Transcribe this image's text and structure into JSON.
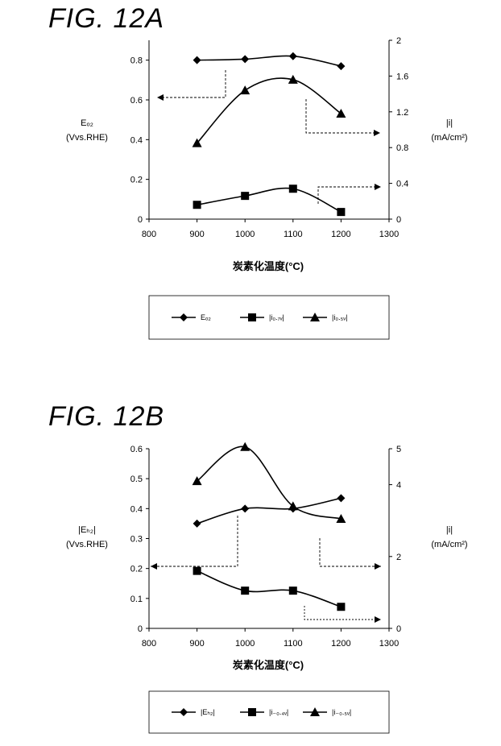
{
  "chart_data": [
    {
      "type": "line",
      "figure_label": "FIG. 12A",
      "xlabel": "炭素化温度(°C)",
      "xlim": [
        800,
        1300
      ],
      "x_ticks": [
        800,
        900,
        1000,
        1100,
        1200,
        1300
      ],
      "ylabel_left": [
        "Eₒ₂",
        "(Vvs.RHE)"
      ],
      "ylim_left": [
        0,
        0.9
      ],
      "y_ticks_left": [
        "0",
        "0.2",
        "0.4",
        "0.6",
        "0.8"
      ],
      "ylabel_right": [
        "|i|",
        "(mA/cm²)"
      ],
      "ylim_right": [
        0,
        2
      ],
      "y_ticks_right": [
        "0",
        "0.4",
        "0.8",
        "1.2",
        "1.6",
        "2"
      ],
      "series": [
        {
          "name": "Eₒ₂",
          "axis": "left",
          "marker": "diamond",
          "x": [
            900,
            1000,
            1100,
            1200
          ],
          "values": [
            0.8,
            0.805,
            0.82,
            0.77
          ]
        },
        {
          "name": "|i₀.₇ᵥ|",
          "axis": "right",
          "marker": "square",
          "x": [
            900,
            1000,
            1100,
            1200
          ],
          "values": [
            0.16,
            0.26,
            0.34,
            0.08
          ]
        },
        {
          "name": "|i₀.₅ᵥ|",
          "axis": "right",
          "marker": "triangle",
          "x": [
            900,
            1000,
            1100,
            1200
          ],
          "values": [
            0.85,
            1.44,
            1.56,
            1.18
          ]
        }
      ],
      "legend_position": "bottom",
      "grid": false
    },
    {
      "type": "line",
      "figure_label": "FIG. 12B",
      "xlabel": "炭素化温度(°C)",
      "xlim": [
        800,
        1300
      ],
      "x_ticks": [
        800,
        900,
        1000,
        1100,
        1200,
        1300
      ],
      "ylabel_left": [
        "|Eₕ₂|",
        "(Vvs.RHE)"
      ],
      "ylim_left": [
        0,
        0.6
      ],
      "y_ticks_left": [
        "0",
        "0.1",
        "0.2",
        "0.3",
        "0.4",
        "0.5",
        "0.6"
      ],
      "ylabel_right": [
        "|i|",
        "(mA/cm²)"
      ],
      "ylim_right": [
        0,
        5
      ],
      "y_ticks_right": [
        "0",
        "2",
        "4",
        "5"
      ],
      "y_tick_values_right": [
        0,
        2,
        4,
        5
      ],
      "series": [
        {
          "name": "|Eₕ₂|",
          "axis": "left",
          "marker": "diamond",
          "x": [
            900,
            1000,
            1100,
            1200
          ],
          "values": [
            0.35,
            0.4,
            0.4,
            0.435
          ]
        },
        {
          "name": "|i₋₀.₄ᵥ|",
          "axis": "right",
          "marker": "square",
          "x": [
            900,
            1000,
            1100,
            1200
          ],
          "values": [
            1.6,
            1.05,
            1.05,
            0.6
          ]
        },
        {
          "name": "|i₋₀.₅ᵥ|",
          "axis": "right",
          "marker": "triangle",
          "x": [
            900,
            1000,
            1100,
            1200
          ],
          "values": [
            4.1,
            5.05,
            3.4,
            3.05
          ]
        }
      ],
      "legend_position": "bottom",
      "grid": false
    }
  ]
}
